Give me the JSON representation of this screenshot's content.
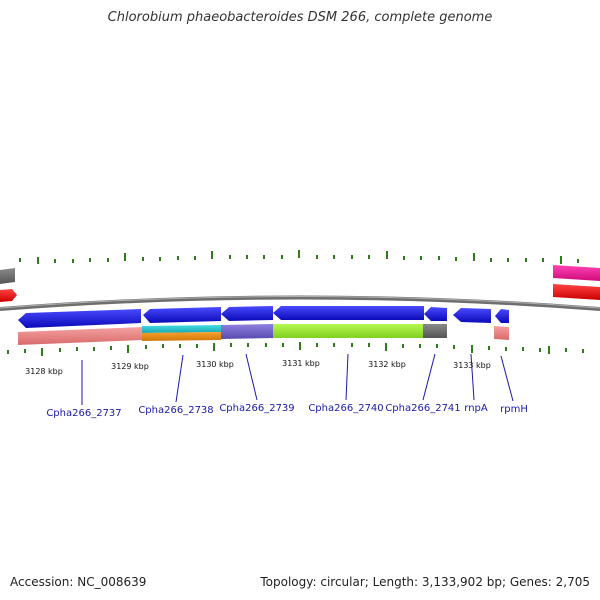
{
  "title": "Chlorobium phaeobacteroides DSM 266, complete genome",
  "footer": {
    "accession": "Accession: NC_008639",
    "summary": "Topology: circular; Length: 3,133,902 bp; Genes: 2,705"
  },
  "ruler": {
    "ticks": [
      "3128 kbp",
      "3129 kbp",
      "3130 kbp",
      "3131 kbp",
      "3132 kbp",
      "3133 kbp"
    ]
  },
  "genes": [
    {
      "label": "Cpha266_2737"
    },
    {
      "label": "Cpha266_2738"
    },
    {
      "label": "Cpha266_2739"
    },
    {
      "label": "Cpha266_2740"
    },
    {
      "label": "Cpha266_2741"
    },
    {
      "label": "rnpA"
    },
    {
      "label": "rpmH"
    }
  ],
  "colors": {
    "arc": "#7a7a7a",
    "gene_blue": "#1a1aee",
    "tick_green": "#2e7d1a",
    "label_blue": "#1a1aaa",
    "feature_salmon": "#f08a8a",
    "feature_cyan": "#22c4cc",
    "feature_orange": "#ee8a10",
    "feature_purple": "#7a6ad0",
    "feature_lime": "#99ee33",
    "feature_gray": "#707070",
    "edge_red": "#ee1111",
    "edge_magenta": "#ee1199"
  }
}
